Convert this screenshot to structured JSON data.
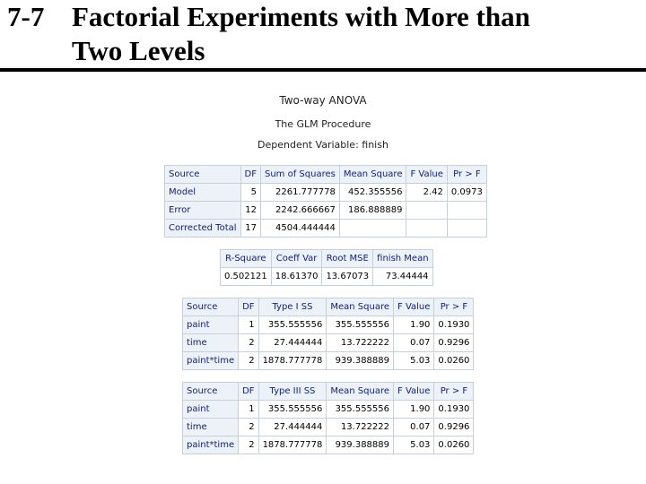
{
  "slide": {
    "number": "7-7",
    "title_line1": "Factorial Experiments with More than",
    "title_line2": "Two Levels"
  },
  "output": {
    "heading": "Two-way ANOVA",
    "procedure": "The GLM Procedure",
    "dependent": "Dependent Variable: finish"
  },
  "anova_table": {
    "headers": [
      "Source",
      "DF",
      "Sum of Squares",
      "Mean Square",
      "F Value",
      "Pr > F"
    ],
    "rows": [
      [
        "Model",
        "5",
        "2261.777778",
        "452.355556",
        "2.42",
        "0.0973"
      ],
      [
        "Error",
        "12",
        "2242.666667",
        "186.888889",
        "",
        ""
      ],
      [
        "Corrected Total",
        "17",
        "4504.444444",
        "",
        "",
        ""
      ]
    ]
  },
  "fit_table": {
    "headers": [
      "R-Square",
      "Coeff Var",
      "Root MSE",
      "finish Mean"
    ],
    "row": [
      "0.502121",
      "18.61370",
      "13.67073",
      "73.44444"
    ]
  },
  "type1_table": {
    "headers": [
      "Source",
      "DF",
      "Type I SS",
      "Mean Square",
      "F Value",
      "Pr > F"
    ],
    "rows": [
      [
        "paint",
        "1",
        "355.555556",
        "355.555556",
        "1.90",
        "0.1930"
      ],
      [
        "time",
        "2",
        "27.444444",
        "13.722222",
        "0.07",
        "0.9296"
      ],
      [
        "paint*time",
        "2",
        "1878.777778",
        "939.388889",
        "5.03",
        "0.0260"
      ]
    ]
  },
  "type3_table": {
    "headers": [
      "Source",
      "DF",
      "Type III SS",
      "Mean Square",
      "F Value",
      "Pr > F"
    ],
    "rows": [
      [
        "paint",
        "1",
        "355.555556",
        "355.555556",
        "1.90",
        "0.1930"
      ],
      [
        "time",
        "2",
        "27.444444",
        "13.722222",
        "0.07",
        "0.9296"
      ],
      [
        "paint*time",
        "2",
        "1878.777778",
        "939.388889",
        "5.03",
        "0.0260"
      ]
    ]
  }
}
